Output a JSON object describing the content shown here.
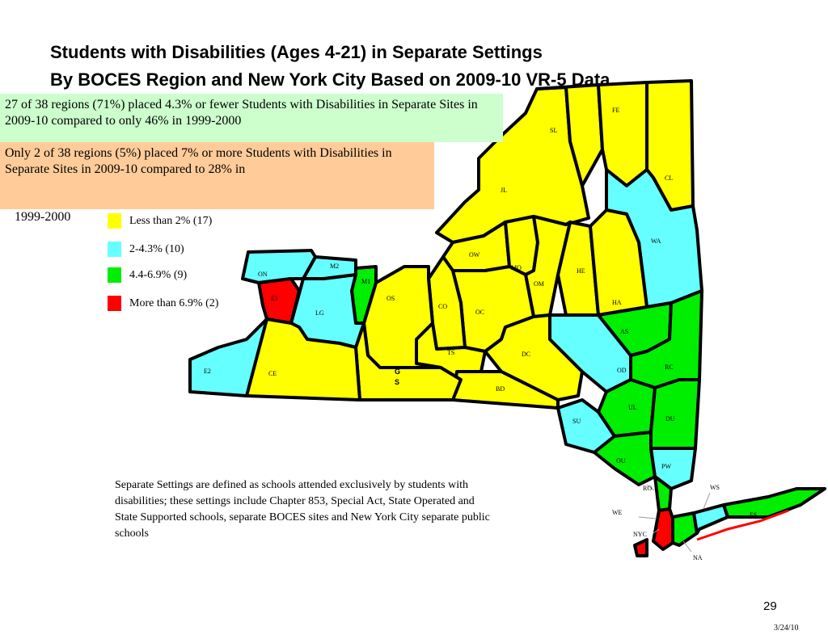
{
  "title": {
    "line1": "Students with Disabilities (Ages 4-21) in Separate Settings",
    "line2": "By BOCES Region and New York City Based on 2009-10 VR-5 Data"
  },
  "callouts": {
    "green": "27 of 38 regions (71%)  placed 4.3% or fewer Students with Disabilities  in Separate Sites in 2009-10 compared to only  46%  in 1999-2000",
    "orange": "Only 2 of 38 regions (5%)  placed 7% or  more Students with Disabilities  in Separate Sites in 2009-10 compared to 28% in",
    "orange_year": "1999-2000"
  },
  "legend": [
    {
      "label": "Less than 2% (17)",
      "color": "#ffff00"
    },
    {
      "label": "2-4.3% (10)",
      "color": "#66ffff"
    },
    {
      "label": "4.4-6.9% (9)",
      "color": "#00ee00"
    },
    {
      "label": "More than 6.9% (2)",
      "color": "#ff0000"
    }
  ],
  "colors": {
    "yellow": "#ffff00",
    "cyan": "#66ffff",
    "green": "#00ee00",
    "red": "#ff0000"
  },
  "regions": {
    "FE": "FE",
    "SL": "SL",
    "CL": "CL",
    "JL": "JL",
    "WA": "WA",
    "ON": "ON",
    "M2": "M2",
    "M1": "M1",
    "E1": "E1",
    "LG": "LG",
    "OS": "OS",
    "OW": "OW",
    "MO": "MO",
    "OM": "OM",
    "HE": "HE",
    "HA": "HA",
    "CO": "CO",
    "OC": "OC",
    "AS": "AS",
    "TS": "TS",
    "DC": "DC",
    "RC": "RC",
    "OD": "OD",
    "E2": "E2",
    "CE": "CE",
    "GS1": "G",
    "GS2": "S",
    "BD": "BD",
    "UL": "UL",
    "DU": "DU",
    "SU": "SU",
    "OU": "OU",
    "PW": "PW",
    "RO": "RO",
    "WS": "WS",
    "WE": "WE",
    "ES": "ES",
    "NYC": "NYC",
    "NA": "NA"
  },
  "note": "Separate Settings are defined as schools attended exclusively by students with disabilities; these settings include Chapter 853, Special Act, State Operated and State Supported schools, separate BOCES sites and New York City separate public schools",
  "page_number": "29",
  "date": "3/24/10"
}
